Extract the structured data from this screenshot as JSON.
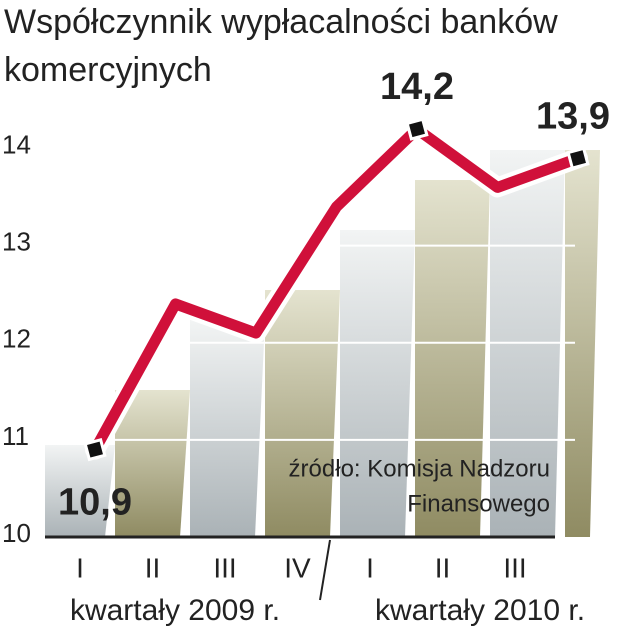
{
  "chart_data": {
    "type": "line",
    "title": [
      "Współczynnik wypłacalności banków",
      "komercyjnych"
    ],
    "categories": [
      "I",
      "II",
      "III",
      "IV",
      "I",
      "II",
      "III"
    ],
    "groups": [
      "kwartały 2009 r.",
      "kwartały 2010 r."
    ],
    "values": [
      10.9,
      12.4,
      12.1,
      13.4,
      14.2,
      13.6,
      13.9
    ],
    "value_labels": [
      "10,9",
      null,
      null,
      null,
      "14,2",
      null,
      "13,9"
    ],
    "color": "#d0103a",
    "ylim": [
      10,
      14.5
    ],
    "yticks": [
      10,
      11,
      12,
      13,
      14
    ],
    "grid": true,
    "source": [
      "źródło: Komisja Nadzoru",
      "Finansowego"
    ]
  }
}
